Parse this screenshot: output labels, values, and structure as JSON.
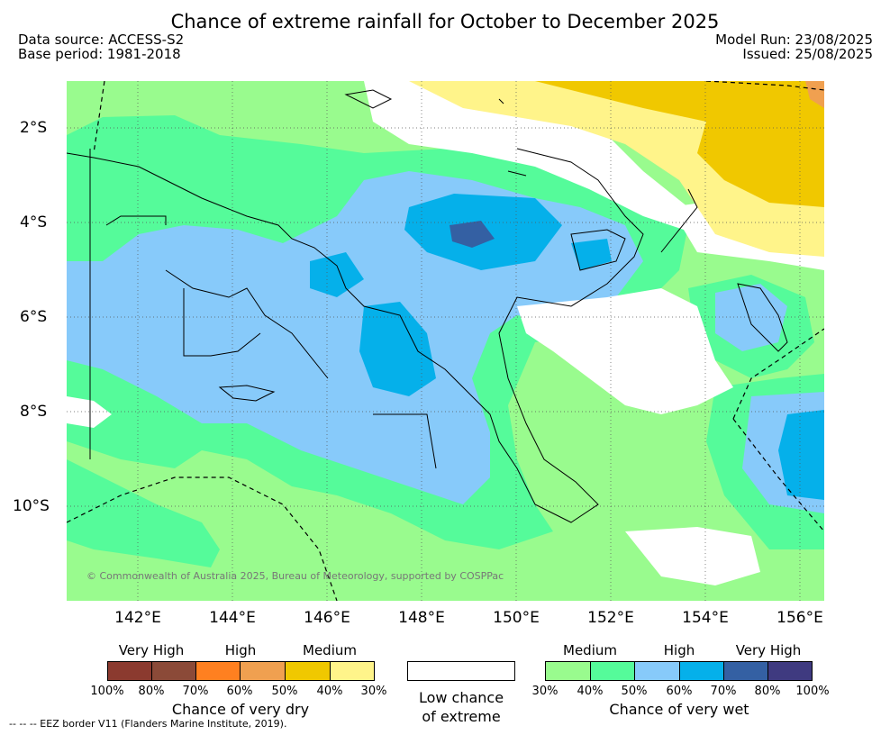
{
  "title": "Chance of extreme rainfall for October to December 2025",
  "data_source": "Data source: ACCESS-S2",
  "base_period": "Base period: 1981-2018",
  "model_run": "Model Run: 23/08/2025",
  "issued": "Issued: 25/08/2025",
  "copyright": "© Commonwealth of Australia 2025, Bureau of Meteorology, supported by COSPPac",
  "lat_labels": [
    "2°S",
    "4°S",
    "6°S",
    "8°S",
    "10°S"
  ],
  "lon_labels": [
    "142°E",
    "144°E",
    "146°E",
    "148°E",
    "150°E",
    "152°E",
    "154°E",
    "156°E"
  ],
  "dry_legend": {
    "levels": [
      "Very High",
      "High",
      "Medium"
    ],
    "ticks": [
      "100%",
      "80%",
      "70%",
      "60%",
      "50%",
      "40%",
      "30%"
    ],
    "colors": [
      "#8b3a2f",
      "#8b4a38",
      "#ff8020",
      "#f0a050",
      "#f0c800",
      "#fff48a"
    ],
    "title": "Chance of very dry"
  },
  "low_chance": {
    "line1": "Low chance",
    "line2": "of extreme",
    "color": "#ffffff"
  },
  "wet_legend": {
    "levels": [
      "Medium",
      "High",
      "Very High"
    ],
    "ticks": [
      "30%",
      "40%",
      "50%",
      "60%",
      "70%",
      "80%",
      "100%"
    ],
    "colors": [
      "#99fb8e",
      "#55fb9a",
      "#87cafa",
      "#05b0ea",
      "#3460a3",
      "#3f3a80"
    ],
    "title": "Chance of very wet"
  },
  "footnote": "-- -- -- EEZ border V11 (Flanders Marine Institute, 2019)."
}
